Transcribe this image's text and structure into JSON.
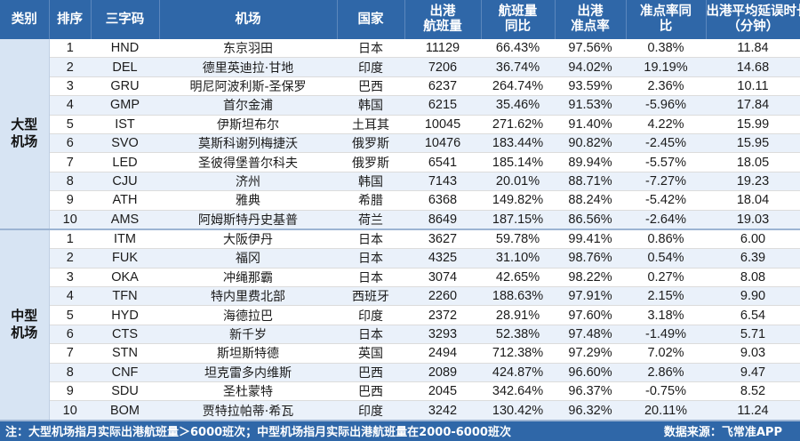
{
  "headers": {
    "category": "类别",
    "rank": "排序",
    "code": "三字码",
    "airport": "机场",
    "country": "国家",
    "departures_l1": "出港",
    "departures_l2": "航班量",
    "yoy_l1": "航班量",
    "yoy_l2": "同比",
    "otp_l1": "出港",
    "otp_l2": "准点率",
    "otp_yoy_l1": "准点率同",
    "otp_yoy_l2": "比",
    "delay_l1": "出港平均延误时长",
    "delay_l2": "（分钟）"
  },
  "large": {
    "label_l1": "大型",
    "label_l2": "机场",
    "rows": [
      {
        "rank": "1",
        "code": "HND",
        "airport": "东京羽田",
        "country": "日本",
        "departures": "11129",
        "yoy": "66.43%",
        "otp": "97.56%",
        "otp_yoy": "0.38%",
        "delay": "11.84"
      },
      {
        "rank": "2",
        "code": "DEL",
        "airport": "德里英迪拉·甘地",
        "country": "印度",
        "departures": "7206",
        "yoy": "36.74%",
        "otp": "94.02%",
        "otp_yoy": "19.19%",
        "delay": "14.68"
      },
      {
        "rank": "3",
        "code": "GRU",
        "airport": "明尼阿波利斯-圣保罗",
        "country": "巴西",
        "departures": "6237",
        "yoy": "264.74%",
        "otp": "93.59%",
        "otp_yoy": "2.36%",
        "delay": "10.11"
      },
      {
        "rank": "4",
        "code": "GMP",
        "airport": "首尔金浦",
        "country": "韩国",
        "departures": "6215",
        "yoy": "35.46%",
        "otp": "91.53%",
        "otp_yoy": "-5.96%",
        "delay": "17.84"
      },
      {
        "rank": "5",
        "code": "IST",
        "airport": "伊斯坦布尔",
        "country": "土耳其",
        "departures": "10045",
        "yoy": "271.62%",
        "otp": "91.40%",
        "otp_yoy": "4.22%",
        "delay": "15.99"
      },
      {
        "rank": "6",
        "code": "SVO",
        "airport": "莫斯科谢列梅捷沃",
        "country": "俄罗斯",
        "departures": "10476",
        "yoy": "183.44%",
        "otp": "90.82%",
        "otp_yoy": "-2.45%",
        "delay": "15.95"
      },
      {
        "rank": "7",
        "code": "LED",
        "airport": "圣彼得堡普尔科夫",
        "country": "俄罗斯",
        "departures": "6541",
        "yoy": "185.14%",
        "otp": "89.94%",
        "otp_yoy": "-5.57%",
        "delay": "18.05"
      },
      {
        "rank": "8",
        "code": "CJU",
        "airport": "济州",
        "country": "韩国",
        "departures": "7143",
        "yoy": "20.01%",
        "otp": "88.71%",
        "otp_yoy": "-7.27%",
        "delay": "19.23"
      },
      {
        "rank": "9",
        "code": "ATH",
        "airport": "雅典",
        "country": "希腊",
        "departures": "6368",
        "yoy": "149.82%",
        "otp": "88.24%",
        "otp_yoy": "-5.42%",
        "delay": "18.04"
      },
      {
        "rank": "10",
        "code": "AMS",
        "airport": "阿姆斯特丹史基普",
        "country": "荷兰",
        "departures": "8649",
        "yoy": "187.15%",
        "otp": "86.56%",
        "otp_yoy": "-2.64%",
        "delay": "19.03"
      }
    ]
  },
  "medium": {
    "label_l1": "中型",
    "label_l2": "机场",
    "rows": [
      {
        "rank": "1",
        "code": "ITM",
        "airport": "大阪伊丹",
        "country": "日本",
        "departures": "3627",
        "yoy": "59.78%",
        "otp": "99.41%",
        "otp_yoy": "0.86%",
        "delay": "6.00"
      },
      {
        "rank": "2",
        "code": "FUK",
        "airport": "福冈",
        "country": "日本",
        "departures": "4325",
        "yoy": "31.10%",
        "otp": "98.76%",
        "otp_yoy": "0.54%",
        "delay": "6.39"
      },
      {
        "rank": "3",
        "code": "OKA",
        "airport": "冲绳那霸",
        "country": "日本",
        "departures": "3074",
        "yoy": "42.65%",
        "otp": "98.22%",
        "otp_yoy": "0.27%",
        "delay": "8.08"
      },
      {
        "rank": "4",
        "code": "TFN",
        "airport": "特内里费北部",
        "country": "西班牙",
        "departures": "2260",
        "yoy": "188.63%",
        "otp": "97.91%",
        "otp_yoy": "2.15%",
        "delay": "9.90"
      },
      {
        "rank": "5",
        "code": "HYD",
        "airport": "海德拉巴",
        "country": "印度",
        "departures": "2372",
        "yoy": "28.91%",
        "otp": "97.60%",
        "otp_yoy": "3.18%",
        "delay": "6.54"
      },
      {
        "rank": "6",
        "code": "CTS",
        "airport": "新千岁",
        "country": "日本",
        "departures": "3293",
        "yoy": "52.38%",
        "otp": "97.48%",
        "otp_yoy": "-1.49%",
        "delay": "5.71"
      },
      {
        "rank": "7",
        "code": "STN",
        "airport": "斯坦斯特德",
        "country": "英国",
        "departures": "2494",
        "yoy": "712.38%",
        "otp": "97.29%",
        "otp_yoy": "7.02%",
        "delay": "9.03"
      },
      {
        "rank": "8",
        "code": "CNF",
        "airport": "坦克雷多内维斯",
        "country": "巴西",
        "departures": "2089",
        "yoy": "424.87%",
        "otp": "96.60%",
        "otp_yoy": "2.86%",
        "delay": "9.47"
      },
      {
        "rank": "9",
        "code": "SDU",
        "airport": "圣杜蒙特",
        "country": "巴西",
        "departures": "2045",
        "yoy": "342.64%",
        "otp": "96.37%",
        "otp_yoy": "-0.75%",
        "delay": "8.52"
      },
      {
        "rank": "10",
        "code": "BOM",
        "airport": "贾特拉帕蒂·希瓦",
        "country": "印度",
        "departures": "3242",
        "yoy": "130.42%",
        "otp": "96.32%",
        "otp_yoy": "20.11%",
        "delay": "11.24"
      }
    ]
  },
  "footer": {
    "note": "注：大型机场指月实际出港航班量＞6000班次；中型机场指月实际出港航班量在2000-6000班次",
    "source": "数据来源：飞常准APP"
  }
}
